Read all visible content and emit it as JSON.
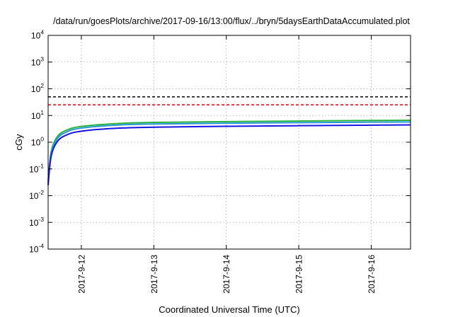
{
  "chart_data": {
    "type": "line",
    "title": "/data/run/goesPlots/archive/2017-09-16/13:00/flux/../bryn/5daysEarthDataAccumulated.plot",
    "xlabel": "Coordinated Universal Time (UTC)",
    "ylabel": "cGy",
    "y_scale": "log",
    "ylim": [
      0.0001,
      10000
    ],
    "y_ticks": [
      {
        "value": 0.0001,
        "base": "10",
        "exp": "-4"
      },
      {
        "value": 0.001,
        "base": "10",
        "exp": "-3"
      },
      {
        "value": 0.01,
        "base": "10",
        "exp": "-2"
      },
      {
        "value": 0.1,
        "base": "10",
        "exp": "-1"
      },
      {
        "value": 1,
        "base": "10",
        "exp": "0"
      },
      {
        "value": 10,
        "base": "10",
        "exp": "1"
      },
      {
        "value": 100,
        "base": "10",
        "exp": "2"
      },
      {
        "value": 1000,
        "base": "10",
        "exp": "3"
      },
      {
        "value": 10000,
        "base": "10",
        "exp": "4"
      }
    ],
    "xlim": [
      "2017-09-11 13:00",
      "2017-09-16 13:00"
    ],
    "x_ticks": [
      "2017-9-12",
      "2017-9-13",
      "2017-9-14",
      "2017-9-15",
      "2017-9-16"
    ],
    "grid": true,
    "legend": "none",
    "thresholds": [
      {
        "value": 50,
        "color": "#000000",
        "style": "dashed"
      },
      {
        "value": 25,
        "color": "#e8141e",
        "style": "dashed"
      }
    ],
    "series": [
      {
        "color": "#28b43c",
        "x": [
          "2017-09-11 13:00",
          "2017-09-11 14:00",
          "2017-09-11 16:00",
          "2017-09-11 19:00",
          "2017-09-12 00:00",
          "2017-09-12 12:00",
          "2017-09-13 00:00",
          "2017-09-14 00:00",
          "2017-09-15 00:00",
          "2017-09-16 00:00",
          "2017-09-16 13:00"
        ],
        "values": [
          0.035,
          0.45,
          1.6,
          2.8,
          3.9,
          5.0,
          5.5,
          5.9,
          6.2,
          6.5,
          6.6
        ]
      },
      {
        "color": "#2896d2",
        "x": [
          "2017-09-11 13:00",
          "2017-09-11 14:00",
          "2017-09-11 16:00",
          "2017-09-11 19:00",
          "2017-09-12 00:00",
          "2017-09-12 12:00",
          "2017-09-13 00:00",
          "2017-09-14 00:00",
          "2017-09-15 00:00",
          "2017-09-16 00:00",
          "2017-09-16 13:00"
        ],
        "values": [
          0.03,
          0.38,
          1.35,
          2.4,
          3.4,
          4.4,
          4.8,
          5.15,
          5.4,
          5.65,
          5.75
        ]
      },
      {
        "color": "#1414e6",
        "x": [
          "2017-09-11 13:00",
          "2017-09-11 14:00",
          "2017-09-11 16:00",
          "2017-09-11 19:00",
          "2017-09-12 00:00",
          "2017-09-12 12:00",
          "2017-09-13 00:00",
          "2017-09-14 00:00",
          "2017-09-15 00:00",
          "2017-09-16 00:00",
          "2017-09-16 13:00"
        ],
        "values": [
          0.025,
          0.3,
          1.05,
          1.85,
          2.6,
          3.35,
          3.65,
          3.95,
          4.15,
          4.35,
          4.45
        ]
      }
    ]
  }
}
